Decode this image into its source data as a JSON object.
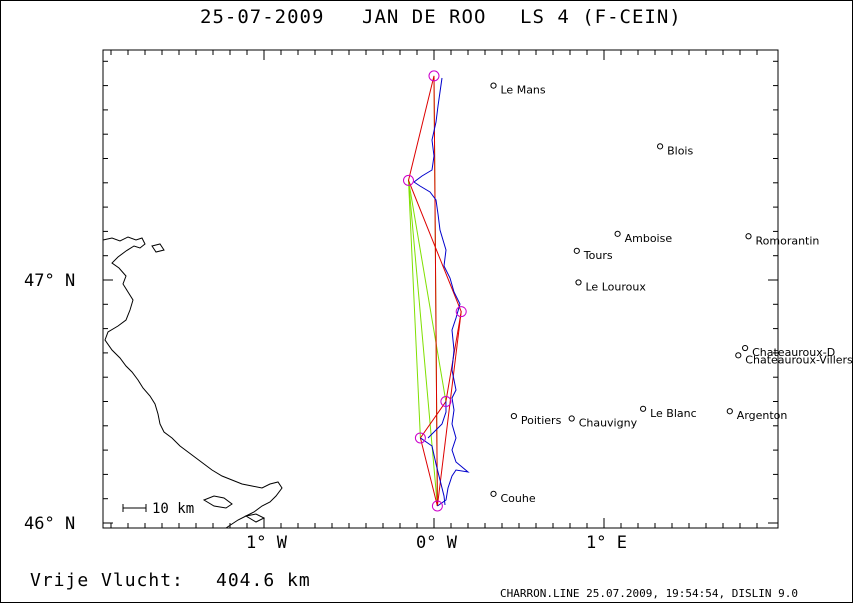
{
  "header": {
    "date": "25-07-2009",
    "pilot": "JAN DE ROO",
    "glider": "LS 4 (F-CEIN)"
  },
  "axes": {
    "lat_labels": [
      {
        "text": "47° N",
        "lat": 47
      },
      {
        "text": "46° N",
        "lat": 46
      }
    ],
    "lon_labels": [
      {
        "text": "1° W",
        "lon": -1
      },
      {
        "text": "0° W",
        "lon": 0
      },
      {
        "text": "1° E",
        "lon": 1
      }
    ]
  },
  "scale": {
    "label": "10 km"
  },
  "cities": [
    {
      "name": "Le Mans",
      "lon": 0.35,
      "lat": 47.8
    },
    {
      "name": "Blois",
      "lon": 1.33,
      "lat": 47.55
    },
    {
      "name": "Amboise",
      "lon": 1.08,
      "lat": 47.19
    },
    {
      "name": "Romorantin",
      "lon": 1.85,
      "lat": 47.18
    },
    {
      "name": "Tours",
      "lon": 0.84,
      "lat": 47.12
    },
    {
      "name": "Le Louroux",
      "lon": 0.85,
      "lat": 46.99
    },
    {
      "name": "Chateauroux-D",
      "lon": 1.83,
      "lat": 46.72
    },
    {
      "name": "Chateauroux-Villers",
      "lon": 1.79,
      "lat": 46.69
    },
    {
      "name": "Le Blanc",
      "lon": 1.23,
      "lat": 46.47
    },
    {
      "name": "Argenton",
      "lon": 1.74,
      "lat": 46.46
    },
    {
      "name": "Poitiers",
      "lon": 0.47,
      "lat": 46.44
    },
    {
      "name": "Chauvigny",
      "lon": 0.81,
      "lat": 46.43
    },
    {
      "name": "Couhe",
      "lon": 0.35,
      "lat": 46.12
    }
  ],
  "turnpoints": [
    {
      "lon": 0.0,
      "lat": 47.84
    },
    {
      "lon": -0.15,
      "lat": 47.41
    },
    {
      "lon": 0.16,
      "lat": 46.87
    },
    {
      "lon": 0.07,
      "lat": 46.5
    },
    {
      "lon": -0.08,
      "lat": 46.35
    },
    {
      "lon": 0.02,
      "lat": 46.07
    }
  ],
  "footer": {
    "distance_label": "Vrije Vlucht:",
    "distance_value": "404.6 km",
    "credit": "CHARRON.LINE 25.07.2009, 19:54:54, DISLIN 9.0"
  },
  "colors": {
    "track": "#0000cc",
    "route": "#dd0000",
    "triangle": "#7fe000",
    "turnpoint": "#cc00cc",
    "coast": "#000000"
  }
}
